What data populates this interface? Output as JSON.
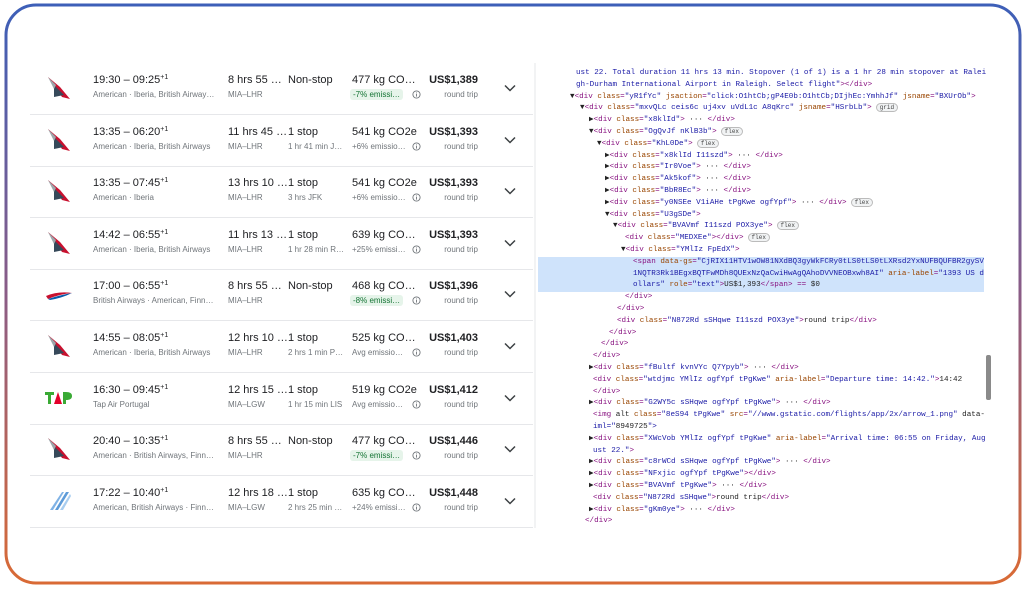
{
  "flights": [
    {
      "time": "19:30 – 09:25",
      "next_day": "+1",
      "airlines": "American · Iberia, British Airway…",
      "duration": "8 hrs 55 …",
      "route": "MIA–LHR",
      "stops": "Non-stop",
      "stop_detail": null,
      "emissions": "477 kg CO…",
      "emissions_note": "-7% emissi…",
      "price": "US$1,389",
      "trip": "round trip"
    },
    {
      "time": "13:35 – 06:20",
      "next_day": "+1",
      "airlines": "American · Iberia, British Airways",
      "duration": "11 hrs 45 …",
      "route": "MIA–LHR",
      "stops": "1 stop",
      "stop_detail": "1 hr 41 min J…",
      "emissions": "541 kg CO2e",
      "emissions_note": "+6% emissio…",
      "price": "US$1,393",
      "trip": "round trip"
    },
    {
      "time": "13:35 – 07:45",
      "next_day": "+1",
      "airlines": "American · Iberia",
      "duration": "13 hrs 10 …",
      "route": "MIA–LHR",
      "stops": "1 stop",
      "stop_detail": "3 hrs JFK",
      "emissions": "541 kg CO2e",
      "emissions_note": "+6% emissio…",
      "price": "US$1,393",
      "trip": "round trip"
    },
    {
      "time": "14:42 – 06:55",
      "next_day": "+1",
      "airlines": "American · Iberia, British Airways",
      "duration": "11 hrs 13 …",
      "route": "MIA–LHR",
      "stops": "1 stop",
      "stop_detail": "1 hr 28 min R…",
      "emissions": "639 kg CO…",
      "emissions_note": "+25% emissi…",
      "price": "US$1,393",
      "trip": "round trip"
    },
    {
      "time": "17:00 – 06:55",
      "next_day": "+1",
      "airlines": "British Airways · American, Finn…",
      "duration": "8 hrs 55 …",
      "route": "MIA–LHR",
      "stops": "Non-stop",
      "stop_detail": null,
      "emissions": "468 kg CO…",
      "emissions_note": "-8% emissi…",
      "price": "US$1,396",
      "trip": "round trip"
    },
    {
      "time": "14:55 – 08:05",
      "next_day": "+1",
      "airlines": "American · Iberia, British Airways",
      "duration": "12 hrs 10 …",
      "route": "MIA–LHR",
      "stops": "1 stop",
      "stop_detail": "2 hrs 1 min P…",
      "emissions": "525 kg CO…",
      "emissions_note": "Avg emissio…",
      "price": "US$1,403",
      "trip": "round trip"
    },
    {
      "time": "16:30 – 09:45",
      "next_day": "+1",
      "airlines": "Tap Air Portugal",
      "duration": "12 hrs 15 …",
      "route": "MIA–LGW",
      "stops": "1 stop",
      "stop_detail": "1 hr 15 min LIS",
      "emissions": "519 kg CO2e",
      "emissions_note": "Avg emissio…",
      "price": "US$1,412",
      "trip": "round trip"
    },
    {
      "time": "20:40 – 10:35",
      "next_day": "+1",
      "airlines": "American · British Airways, Finn…",
      "duration": "8 hrs 55 …",
      "route": "MIA–LHR",
      "stops": "Non-stop",
      "stop_detail": null,
      "emissions": "477 kg CO…",
      "emissions_note": "-7% emissi…",
      "price": "US$1,446",
      "trip": "round trip"
    },
    {
      "time": "17:22 – 10:40",
      "next_day": "+1",
      "airlines": "American, British Airways · Finn…",
      "duration": "12 hrs 18 …",
      "route": "MIA–LGW",
      "stops": "1 stop",
      "stop_detail": "2 hrs 25 min …",
      "emissions": "635 kg CO…",
      "emissions_note": "+24% emissi…",
      "price": "US$1,448",
      "trip": "round trip"
    }
  ],
  "devtools": {
    "lines": [
      {
        "text": "ust 22. Total duration 11 hrs 13 min. Stopover (1 of 1) is a 1 hr 28 min stopover at Ralei"
      },
      {
        "text": "gh-Durham International Airport in Raleigh. Select flight\"></div>"
      },
      {
        "text": "▼<div class=\"yR1fYc\" jsaction=\"click:O1htCb;gP4E0b:O1htCb;DIjhEc:YmhhJf\" jsname=\"BXUrOb\">"
      },
      {
        "text": "▼<div class=\"mxvQLc ceis6c uj4xv uVdL1c A8qKrc\" jsname=\"HSrbLb\">",
        "badge": "grid"
      },
      {
        "text": "▶<div class=\"x8klId\"> ··· </div>"
      },
      {
        "text": "▼<div class=\"OgQvJf nKlB3b\">",
        "badge": "flex"
      },
      {
        "text": "▼<div class=\"KhL0De\">",
        "badge": "flex"
      },
      {
        "text": "▶<div class=\"x8klId I11szd\"> ··· </div>"
      },
      {
        "text": "▶<div class=\"Ir0Voe\"> ··· </div>"
      },
      {
        "text": "▶<div class=\"Ak5kof\"> ··· </div>"
      },
      {
        "text": "▶<div class=\"BbR8Ec\"> ··· </div>"
      },
      {
        "text": "▶<div class=\"y0NSEe V1iAHe tPgKwe ogfYpf\"> ··· </div>",
        "badge": "flex"
      },
      {
        "text": "▼<div class=\"U3gSDe\">"
      },
      {
        "text": "▼<div class=\"BVAVmf I11szd POX3ye\">",
        "badge": "flex"
      },
      {
        "text": "<div class=\"MEDXEe\"></div>",
        "badge": "flex"
      },
      {
        "text": "▼<div class=\"YMlIz FpEdX\">"
      },
      {
        "text": "<span data-gs=\"CjRIX11HTV1wOW81NXdBQ3gyWkFCRy0tLS0tLS0tLXRsd2YxNUFBQUFBR2gySV"
      },
      {
        "text": "1NQTR3Rk1BEgxBQTFwMDh8QUExNzQaCwiHwAgQAhoDVVNEOBxwh8AI\" aria-label=\"1393 US d"
      },
      {
        "text": "ollars\" role=\"text\">US$1,393</span> == $0"
      },
      {
        "text": "</div>"
      },
      {
        "text": "</div>"
      },
      {
        "text": "<div class=\"N872Rd sSHqwe I11szd POX3ye\">round trip</div>"
      },
      {
        "text": "</div>"
      },
      {
        "text": "</div>"
      },
      {
        "text": "</div>"
      },
      {
        "text": "▶<div class=\"fBultf kvnVYc Q7Ypyb\"> ··· </div>"
      },
      {
        "text": "<div class=\"wtdjmc YMlIz ogfYpf tPgKwe\" aria-label=\"Departure time: 14:42.\">14:42"
      },
      {
        "text": "</div>"
      },
      {
        "text": "▶<div class=\"G2WY5c sSHqwe ogfYpf tPgKwe\"> ··· </div>"
      },
      {
        "text": "<img alt class=\"8eS94 tPgKwe\" src=\"//www.gstatic.com/flights/app/2x/arrow_1.png\" data-"
      },
      {
        "text": "iml=\"8949725\">"
      },
      {
        "text": "▶<div class=\"XWcVob YMlIz ogfYpf tPgKwe\" aria-label=\"Arrival time: 06:55 on Friday, Aug"
      },
      {
        "text": "ust 22.\">"
      },
      {
        "text": "▶<div class=\"c8rWCd sSHqwe ogfYpf tPgKwe\"> ··· </div>"
      },
      {
        "text": "▶<div class=\"NFxjic ogfYpf tPgKwe\"></div>"
      },
      {
        "text": "▶<div class=\"BVAVmf tPgKwe\"> ··· </div>"
      },
      {
        "text": "<div class=\"N872Rd sSHqwe\">round trip</div>"
      },
      {
        "text": "▶<div class=\"gKm0ye\"> ··· </div>"
      },
      {
        "text": "</div>"
      }
    ]
  }
}
